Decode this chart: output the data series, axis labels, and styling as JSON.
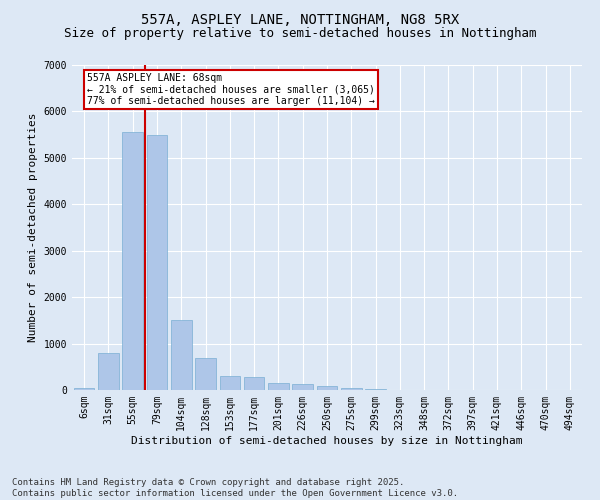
{
  "title": "557A, ASPLEY LANE, NOTTINGHAM, NG8 5RX",
  "subtitle": "Size of property relative to semi-detached houses in Nottingham",
  "xlabel": "Distribution of semi-detached houses by size in Nottingham",
  "ylabel": "Number of semi-detached properties",
  "categories": [
    "6sqm",
    "31sqm",
    "55sqm",
    "79sqm",
    "104sqm",
    "128sqm",
    "153sqm",
    "177sqm",
    "201sqm",
    "226sqm",
    "250sqm",
    "275sqm",
    "299sqm",
    "323sqm",
    "348sqm",
    "372sqm",
    "397sqm",
    "421sqm",
    "446sqm",
    "470sqm",
    "494sqm"
  ],
  "values": [
    50,
    800,
    5550,
    5500,
    1500,
    680,
    300,
    270,
    160,
    120,
    90,
    50,
    25,
    8,
    4,
    2,
    1,
    0,
    0,
    0,
    0
  ],
  "bar_color": "#aec6e8",
  "bar_edgecolor": "#7aafd4",
  "background_color": "#dde8f5",
  "grid_color": "#ffffff",
  "red_line_x": 2.5,
  "annotation_text": "557A ASPLEY LANE: 68sqm\n← 21% of semi-detached houses are smaller (3,065)\n77% of semi-detached houses are larger (11,104) →",
  "annotation_box_color": "#ffffff",
  "annotation_box_edgecolor": "#cc0000",
  "ylim": [
    0,
    7000
  ],
  "yticks": [
    0,
    1000,
    2000,
    3000,
    4000,
    5000,
    6000,
    7000
  ],
  "footnote": "Contains HM Land Registry data © Crown copyright and database right 2025.\nContains public sector information licensed under the Open Government Licence v3.0.",
  "title_fontsize": 10,
  "subtitle_fontsize": 9,
  "axis_label_fontsize": 8,
  "tick_fontsize": 7,
  "annotation_fontsize": 7,
  "footnote_fontsize": 6.5
}
